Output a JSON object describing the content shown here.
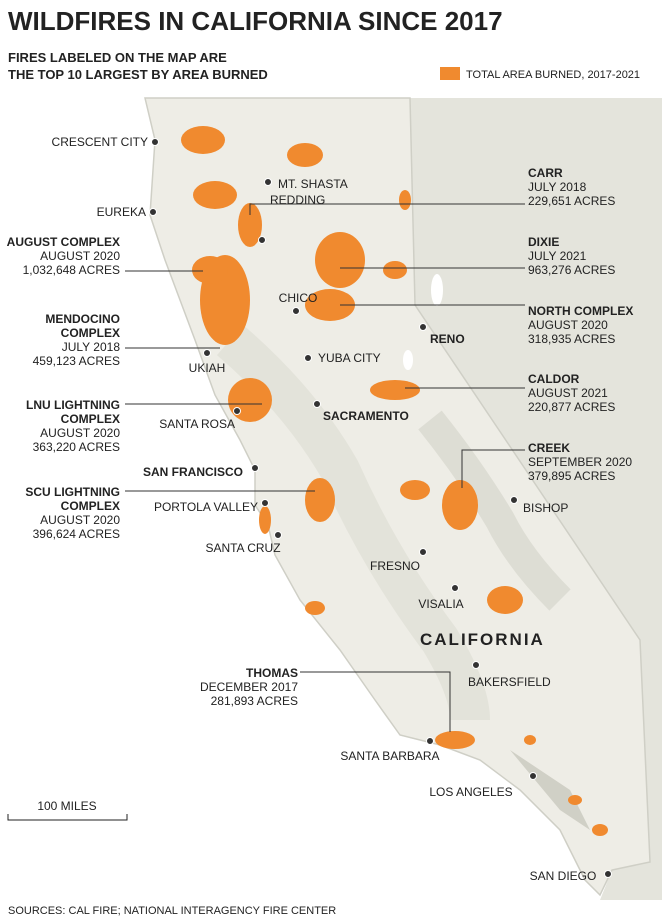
{
  "title": "WILDFIRES IN CALIFORNIA SINCE 2017",
  "subtitle": [
    "FIRES LABELED ON THE MAP ARE",
    "THE TOP 10 LARGEST BY AREA BURNED"
  ],
  "legend": "TOTAL AREA BURNED, 2017-2021",
  "state_label": "CALIFORNIA",
  "fires": [
    {
      "name": [
        "CARR"
      ],
      "date": "JULY 2018",
      "area": "229,651 ACRES"
    },
    {
      "name": [
        "AUGUST COMPLEX"
      ],
      "date": "AUGUST 2020",
      "area": "1,032,648 ACRES"
    },
    {
      "name": [
        "DIXIE"
      ],
      "date": "JULY 2021",
      "area": "963,276 ACRES"
    },
    {
      "name": [
        "MENDOCINO",
        "COMPLEX"
      ],
      "date": "JULY 2018",
      "area": "459,123 ACRES"
    },
    {
      "name": [
        "NORTH COMPLEX"
      ],
      "date": "AUGUST 2020",
      "area": "318,935 ACRES"
    },
    {
      "name": [
        "LNU LIGHTNING",
        "COMPLEX"
      ],
      "date": "AUGUST 2020",
      "area": "363,220 ACRES"
    },
    {
      "name": [
        "CALDOR"
      ],
      "date": "AUGUST 2021",
      "area": "220,877 ACRES"
    },
    {
      "name": [
        "SCU LIGHTNING",
        "COMPLEX"
      ],
      "date": "AUGUST 2020",
      "area": "396,624 ACRES"
    },
    {
      "name": [
        "CREEK"
      ],
      "date": "SEPTEMBER 2020",
      "area": "379,895 ACRES"
    },
    {
      "name": [
        "THOMAS"
      ],
      "date": "DECEMBER 2017",
      "area": "281,893 ACRES"
    }
  ],
  "cities": [
    "CRESCENT CITY",
    "MT. SHASTA",
    "EUREKA",
    "REDDING",
    "CHICO",
    "YUBA CITY",
    "UKIAH",
    "RENO",
    "SACRAMENTO",
    "SANTA ROSA",
    "SAN FRANCISCO",
    "PORTOLA VALLEY",
    "SANTA CRUZ",
    "FRESNO",
    "VISALIA",
    "BISHOP",
    "BAKERSFIELD",
    "SANTA BARBARA",
    "LOS ANGELES",
    "SAN DIEGO"
  ],
  "scale": "100 MILES",
  "source": "SOURCES: CAL FIRE;  NATIONAL INTERAGENCY FIRE CENTER"
}
